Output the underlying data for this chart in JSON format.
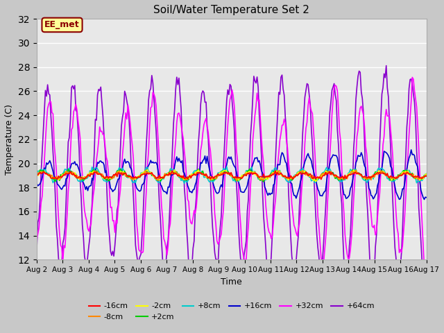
{
  "title": "Soil/Water Temperature Set 2",
  "xlabel": "Time",
  "ylabel": "Temperature (C)",
  "ylim": [
    12,
    32
  ],
  "yticks": [
    12,
    14,
    16,
    18,
    20,
    22,
    24,
    26,
    28,
    30,
    32
  ],
  "x_labels": [
    "Aug 2",
    "Aug 3",
    "Aug 4",
    "Aug 5",
    "Aug 6",
    "Aug 7",
    "Aug 8",
    "Aug 9",
    "Aug 10",
    "Aug 11",
    "Aug 12",
    "Aug 13",
    "Aug 14",
    "Aug 15",
    "Aug 16",
    "Aug 17"
  ],
  "annotation_text": "EE_met",
  "annotation_bg": "#ffff99",
  "annotation_border": "#8b0000",
  "fig_bg": "#c8c8c8",
  "plot_bg": "#e8e8e8",
  "series_order": [
    "-16cm",
    "-8cm",
    "-2cm",
    "+2cm",
    "+8cm",
    "+16cm",
    "+32cm",
    "+64cm"
  ],
  "series": {
    "-16cm": {
      "color": "#ff0000",
      "lw": 1.2
    },
    "-8cm": {
      "color": "#ff8800",
      "lw": 1.2
    },
    "-2cm": {
      "color": "#ffff00",
      "lw": 1.2
    },
    "+2cm": {
      "color": "#00cc00",
      "lw": 1.2
    },
    "+8cm": {
      "color": "#00cccc",
      "lw": 1.2
    },
    "+16cm": {
      "color": "#0000cc",
      "lw": 1.2
    },
    "+32cm": {
      "color": "#ff00ff",
      "lw": 1.2
    },
    "+64cm": {
      "color": "#8800cc",
      "lw": 1.2
    }
  },
  "legend_rows": [
    [
      "-16cm",
      "-8cm",
      "-2cm",
      "+2cm",
      "+8cm",
      "+16cm"
    ],
    [
      "+32cm",
      "+64cm"
    ]
  ]
}
